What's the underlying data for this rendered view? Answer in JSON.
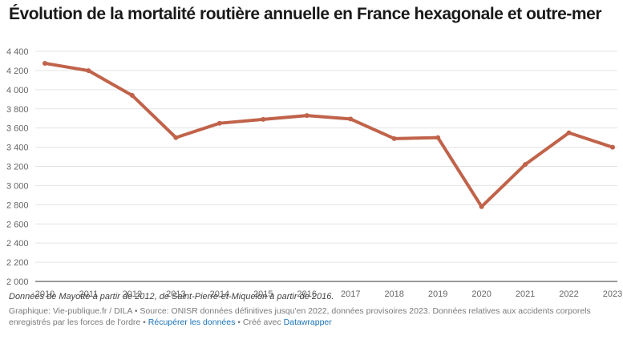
{
  "title": "Évolution de la mortalité routière annuelle en France hexagonale et outre-mer",
  "chart_data": {
    "type": "line",
    "title": "Évolution de la mortalité routière annuelle en France hexagonale et outre-mer",
    "xlabel": "",
    "ylabel": "",
    "categories": [
      "2010",
      "2011",
      "2012",
      "2013",
      "2014",
      "2015",
      "2016",
      "2017",
      "2018",
      "2019",
      "2020",
      "2021",
      "2022",
      "2023"
    ],
    "series": [
      {
        "values": [
          4275,
          4198,
          3940,
          3500,
          3650,
          3690,
          3730,
          3694,
          3490,
          3500,
          2780,
          3220,
          3550,
          3400
        ]
      }
    ],
    "y_ticks": [
      "4 400",
      "4 200",
      "4 000",
      "3 800",
      "3 600",
      "3 400",
      "3 200",
      "3 000",
      "2 800",
      "2 600",
      "2 400",
      "2 200",
      "2 000"
    ],
    "y_tick_values": [
      4400,
      4200,
      4000,
      3800,
      3600,
      3400,
      3200,
      3000,
      2800,
      2600,
      2400,
      2200,
      2000
    ],
    "ylim": [
      2000,
      4400
    ],
    "grid": true,
    "line_color": "#c0634a"
  },
  "note": "Données de Mayotte à partir de 2012, de Saint-Pierre-et-Miquelon à partir de 2016.",
  "footer": {
    "text": "Graphique: Vie-publique.fr / DILA • Source: ONISR données définitives jusqu'en 2022, données provisoires 2023. Données relatives aux accidents corporels enregistrés par les forces de l'ordre •",
    "link_data": "Récupérer les données",
    "created_with": "• Créé avec",
    "link_tool": "Datawrapper"
  }
}
